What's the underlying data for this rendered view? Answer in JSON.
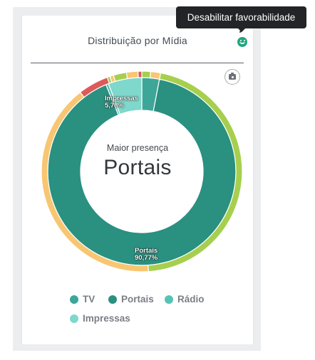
{
  "card": {
    "title": "Distribuição por Mídia"
  },
  "tooltip": {
    "text": "Desabilitar favorabilidade"
  },
  "icons": {
    "favorability": "smile-icon",
    "export": "camera-icon",
    "edit": "pencil-icon"
  },
  "center": {
    "label": "Maior presença",
    "value": "Portais"
  },
  "chart_data": [
    {
      "type": "pie",
      "variant": "donut",
      "ring": "inner",
      "categories": [
        "TV",
        "Portais",
        "Rádio",
        "Impressas"
      ],
      "values": [
        3.0,
        90.77,
        0.45,
        5.78
      ],
      "colors": [
        "#3da698",
        "#2a9080",
        "#57c2b5",
        "#7ed8cc"
      ],
      "data_labels": [
        {
          "category": "Impressas",
          "name": "Impressas",
          "value": "5,78%"
        },
        {
          "category": "Portais",
          "name": "Portais",
          "value": "90,77%"
        }
      ],
      "legend": "bottom"
    },
    {
      "type": "pie",
      "variant": "donut",
      "ring": "outer",
      "slices": [
        {
          "color": "#a6cf4e",
          "value": 1.4
        },
        {
          "color": "#f8c672",
          "value": 1.6
        },
        {
          "color": "#a6cf4e",
          "value": 45.9
        },
        {
          "color": "#f8c672",
          "value": 40.5
        },
        {
          "color": "#dd5a59",
          "value": 4.9
        },
        {
          "color": "#a6cf4e",
          "value": 0.45
        },
        {
          "color": "#f8c672",
          "value": 0.6
        },
        {
          "color": "#a6cf4e",
          "value": 2.1
        },
        {
          "color": "#f8c672",
          "value": 1.85
        },
        {
          "color": "#dd5a59",
          "value": 0.6
        }
      ]
    }
  ]
}
